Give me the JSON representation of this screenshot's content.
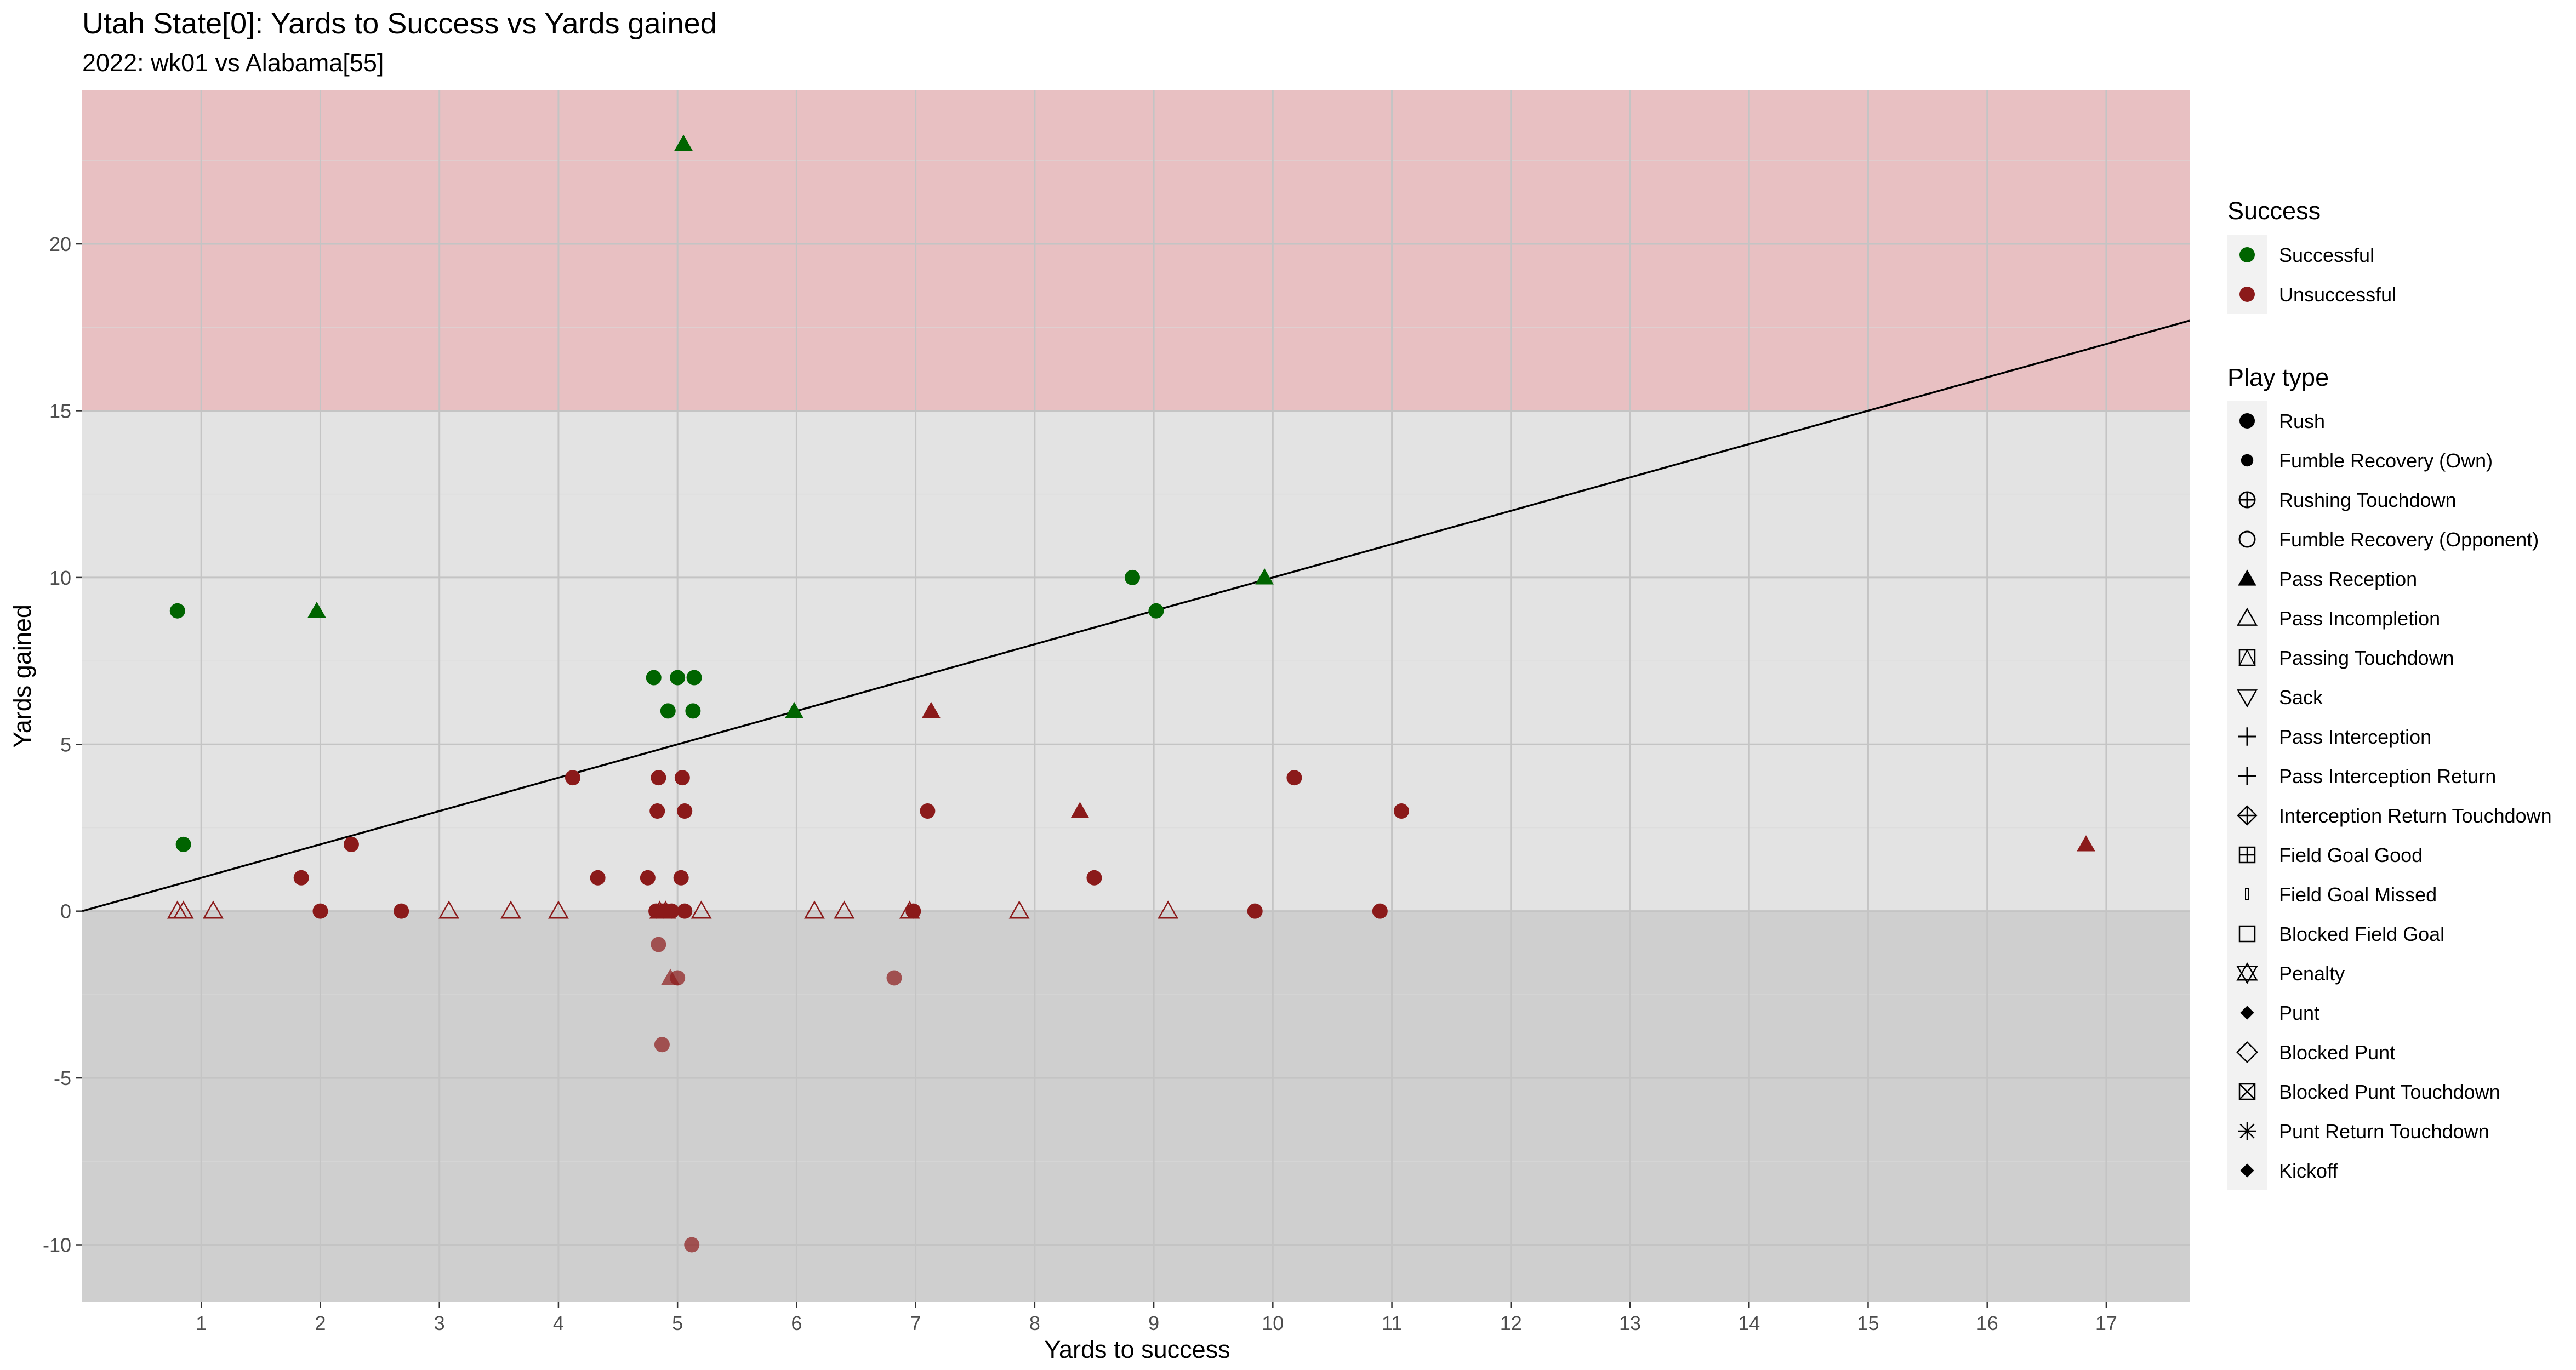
{
  "chart_data": {
    "type": "scatter",
    "title": "Utah State[0]: Yards to Success vs Yards gained",
    "subtitle": "2022: wk01 vs Alabama[55]",
    "xlabel": "Yards to success",
    "ylabel": "Yards gained",
    "xlim": [
      0,
      17.7
    ],
    "ylim": [
      -11.7,
      24.6
    ],
    "x_ticks": [
      1,
      2,
      3,
      4,
      5,
      6,
      7,
      8,
      9,
      10,
      11,
      12,
      13,
      14,
      15,
      16,
      17
    ],
    "y_ticks": [
      -10,
      -5,
      0,
      5,
      10,
      15,
      20
    ],
    "grid": true,
    "background_bands": [
      {
        "from": 15,
        "to": 24.6,
        "color": "#e8c0c2"
      },
      {
        "from": 0,
        "to": 15,
        "color": "#e3e3e3"
      },
      {
        "from": -11.7,
        "to": 0,
        "color": "#cfcfcf"
      }
    ],
    "reference_line": {
      "slope": 1,
      "intercept": 0,
      "color": "#000000"
    },
    "colors": {
      "Successful": "#006400",
      "Unsuccessful": "#8b1a1a"
    },
    "points": [
      {
        "x": 0.8,
        "y": 9,
        "success": "Successful",
        "play": "Rush"
      },
      {
        "x": 0.85,
        "y": 2,
        "success": "Successful",
        "play": "Rush"
      },
      {
        "x": 1.97,
        "y": 9,
        "success": "Successful",
        "play": "Pass Reception"
      },
      {
        "x": 4.8,
        "y": 7,
        "success": "Successful",
        "play": "Rush"
      },
      {
        "x": 5.0,
        "y": 7,
        "success": "Successful",
        "play": "Rush"
      },
      {
        "x": 5.14,
        "y": 7,
        "success": "Successful",
        "play": "Rush"
      },
      {
        "x": 4.92,
        "y": 6,
        "success": "Successful",
        "play": "Rush"
      },
      {
        "x": 5.13,
        "y": 6,
        "success": "Successful",
        "play": "Rush"
      },
      {
        "x": 5.05,
        "y": 23,
        "success": "Successful",
        "play": "Pass Reception"
      },
      {
        "x": 5.98,
        "y": 6,
        "success": "Successful",
        "play": "Pass Reception"
      },
      {
        "x": 8.82,
        "y": 10,
        "success": "Successful",
        "play": "Rush"
      },
      {
        "x": 9.02,
        "y": 9,
        "success": "Successful",
        "play": "Rush"
      },
      {
        "x": 9.93,
        "y": 10,
        "success": "Successful",
        "play": "Pass Reception"
      },
      {
        "x": 1.84,
        "y": 1,
        "success": "Unsuccessful",
        "play": "Rush"
      },
      {
        "x": 2.26,
        "y": 2,
        "success": "Unsuccessful",
        "play": "Rush"
      },
      {
        "x": 2.0,
        "y": 0,
        "success": "Unsuccessful",
        "play": "Rush"
      },
      {
        "x": 2.68,
        "y": 0,
        "success": "Unsuccessful",
        "play": "Rush"
      },
      {
        "x": 4.12,
        "y": 4,
        "success": "Unsuccessful",
        "play": "Rush"
      },
      {
        "x": 4.33,
        "y": 1,
        "success": "Unsuccessful",
        "play": "Rush"
      },
      {
        "x": 4.84,
        "y": 4,
        "success": "Unsuccessful",
        "play": "Rush"
      },
      {
        "x": 5.04,
        "y": 4,
        "success": "Unsuccessful",
        "play": "Rush"
      },
      {
        "x": 4.83,
        "y": 3,
        "success": "Unsuccessful",
        "play": "Rush"
      },
      {
        "x": 5.06,
        "y": 3,
        "success": "Unsuccessful",
        "play": "Rush"
      },
      {
        "x": 4.75,
        "y": 1,
        "success": "Unsuccessful",
        "play": "Rush"
      },
      {
        "x": 5.03,
        "y": 1,
        "success": "Unsuccessful",
        "play": "Rush"
      },
      {
        "x": 4.82,
        "y": 0,
        "success": "Unsuccessful",
        "play": "Rush"
      },
      {
        "x": 4.88,
        "y": 0,
        "success": "Unsuccessful",
        "play": "Rush"
      },
      {
        "x": 4.95,
        "y": 0,
        "success": "Unsuccessful",
        "play": "Rush"
      },
      {
        "x": 5.06,
        "y": 0,
        "success": "Unsuccessful",
        "play": "Rush"
      },
      {
        "x": 4.84,
        "y": -1,
        "success": "Unsuccessful",
        "play": "Rush"
      },
      {
        "x": 5.0,
        "y": -2,
        "success": "Unsuccessful",
        "play": "Rush"
      },
      {
        "x": 4.87,
        "y": -4,
        "success": "Unsuccessful",
        "play": "Rush"
      },
      {
        "x": 5.12,
        "y": -10,
        "success": "Unsuccessful",
        "play": "Rush"
      },
      {
        "x": 6.82,
        "y": -2,
        "success": "Unsuccessful",
        "play": "Rush"
      },
      {
        "x": 6.98,
        "y": 0,
        "success": "Unsuccessful",
        "play": "Rush"
      },
      {
        "x": 7.1,
        "y": 3,
        "success": "Unsuccessful",
        "play": "Rush"
      },
      {
        "x": 8.5,
        "y": 1,
        "success": "Unsuccessful",
        "play": "Rush"
      },
      {
        "x": 9.85,
        "y": 0,
        "success": "Unsuccessful",
        "play": "Rush"
      },
      {
        "x": 10.18,
        "y": 4,
        "success": "Unsuccessful",
        "play": "Rush"
      },
      {
        "x": 10.9,
        "y": 0,
        "success": "Unsuccessful",
        "play": "Rush"
      },
      {
        "x": 11.08,
        "y": 3,
        "success": "Unsuccessful",
        "play": "Rush"
      },
      {
        "x": 4.94,
        "y": -2,
        "success": "Unsuccessful",
        "play": "Pass Reception"
      },
      {
        "x": 7.13,
        "y": 6,
        "success": "Unsuccessful",
        "play": "Pass Reception"
      },
      {
        "x": 8.38,
        "y": 3,
        "success": "Unsuccessful",
        "play": "Pass Reception"
      },
      {
        "x": 16.83,
        "y": 2,
        "success": "Unsuccessful",
        "play": "Pass Reception"
      },
      {
        "x": 0.8,
        "y": 0,
        "success": "Unsuccessful",
        "play": "Pass Incompletion"
      },
      {
        "x": 0.85,
        "y": 0,
        "success": "Unsuccessful",
        "play": "Pass Incompletion"
      },
      {
        "x": 1.1,
        "y": 0,
        "success": "Unsuccessful",
        "play": "Pass Incompletion"
      },
      {
        "x": 3.08,
        "y": 0,
        "success": "Unsuccessful",
        "play": "Pass Incompletion"
      },
      {
        "x": 3.6,
        "y": 0,
        "success": "Unsuccessful",
        "play": "Pass Incompletion"
      },
      {
        "x": 4.0,
        "y": 0,
        "success": "Unsuccessful",
        "play": "Pass Incompletion"
      },
      {
        "x": 4.85,
        "y": 0,
        "success": "Unsuccessful",
        "play": "Pass Incompletion"
      },
      {
        "x": 4.9,
        "y": 0,
        "success": "Unsuccessful",
        "play": "Pass Incompletion"
      },
      {
        "x": 5.2,
        "y": 0,
        "success": "Unsuccessful",
        "play": "Pass Incompletion"
      },
      {
        "x": 6.15,
        "y": 0,
        "success": "Unsuccessful",
        "play": "Pass Incompletion"
      },
      {
        "x": 6.4,
        "y": 0,
        "success": "Unsuccessful",
        "play": "Pass Incompletion"
      },
      {
        "x": 6.95,
        "y": 0,
        "success": "Unsuccessful",
        "play": "Pass Incompletion"
      },
      {
        "x": 7.87,
        "y": 0,
        "success": "Unsuccessful",
        "play": "Pass Incompletion"
      },
      {
        "x": 9.12,
        "y": 0,
        "success": "Unsuccessful",
        "play": "Pass Incompletion"
      }
    ],
    "legend": {
      "placement": "right",
      "success": {
        "title": "Success",
        "items": [
          {
            "label": "Successful",
            "color": "#006400"
          },
          {
            "label": "Unsuccessful",
            "color": "#8b1a1a"
          }
        ]
      },
      "play_type": {
        "title": "Play type",
        "items": [
          {
            "label": "Rush",
            "icon": "filled-circle"
          },
          {
            "label": "Fumble Recovery (Own)",
            "icon": "filled-circle-small"
          },
          {
            "label": "Rushing Touchdown",
            "icon": "circle-plus"
          },
          {
            "label": "Fumble Recovery (Opponent)",
            "icon": "open-circle"
          },
          {
            "label": "Pass Reception",
            "icon": "filled-triangle"
          },
          {
            "label": "Pass Incompletion",
            "icon": "open-triangle"
          },
          {
            "label": "Passing Touchdown",
            "icon": "square-triangle"
          },
          {
            "label": "Sack",
            "icon": "open-triangle-down"
          },
          {
            "label": "Pass Interception",
            "icon": "plus"
          },
          {
            "label": "Pass Interception Return",
            "icon": "plus"
          },
          {
            "label": "Interception Return Touchdown",
            "icon": "diamond-plus"
          },
          {
            "label": "Field Goal Good",
            "icon": "square-plus"
          },
          {
            "label": "Field Goal Missed",
            "icon": "small-rect"
          },
          {
            "label": "Blocked Field Goal",
            "icon": "open-square"
          },
          {
            "label": "Penalty",
            "icon": "star-of-david"
          },
          {
            "label": "Punt",
            "icon": "filled-diamond"
          },
          {
            "label": "Blocked Punt",
            "icon": "open-diamond"
          },
          {
            "label": "Blocked Punt Touchdown",
            "icon": "square-x"
          },
          {
            "label": "Punt Return Touchdown",
            "icon": "asterisk"
          },
          {
            "label": "Kickoff",
            "icon": "filled-diamond"
          }
        ]
      }
    }
  }
}
